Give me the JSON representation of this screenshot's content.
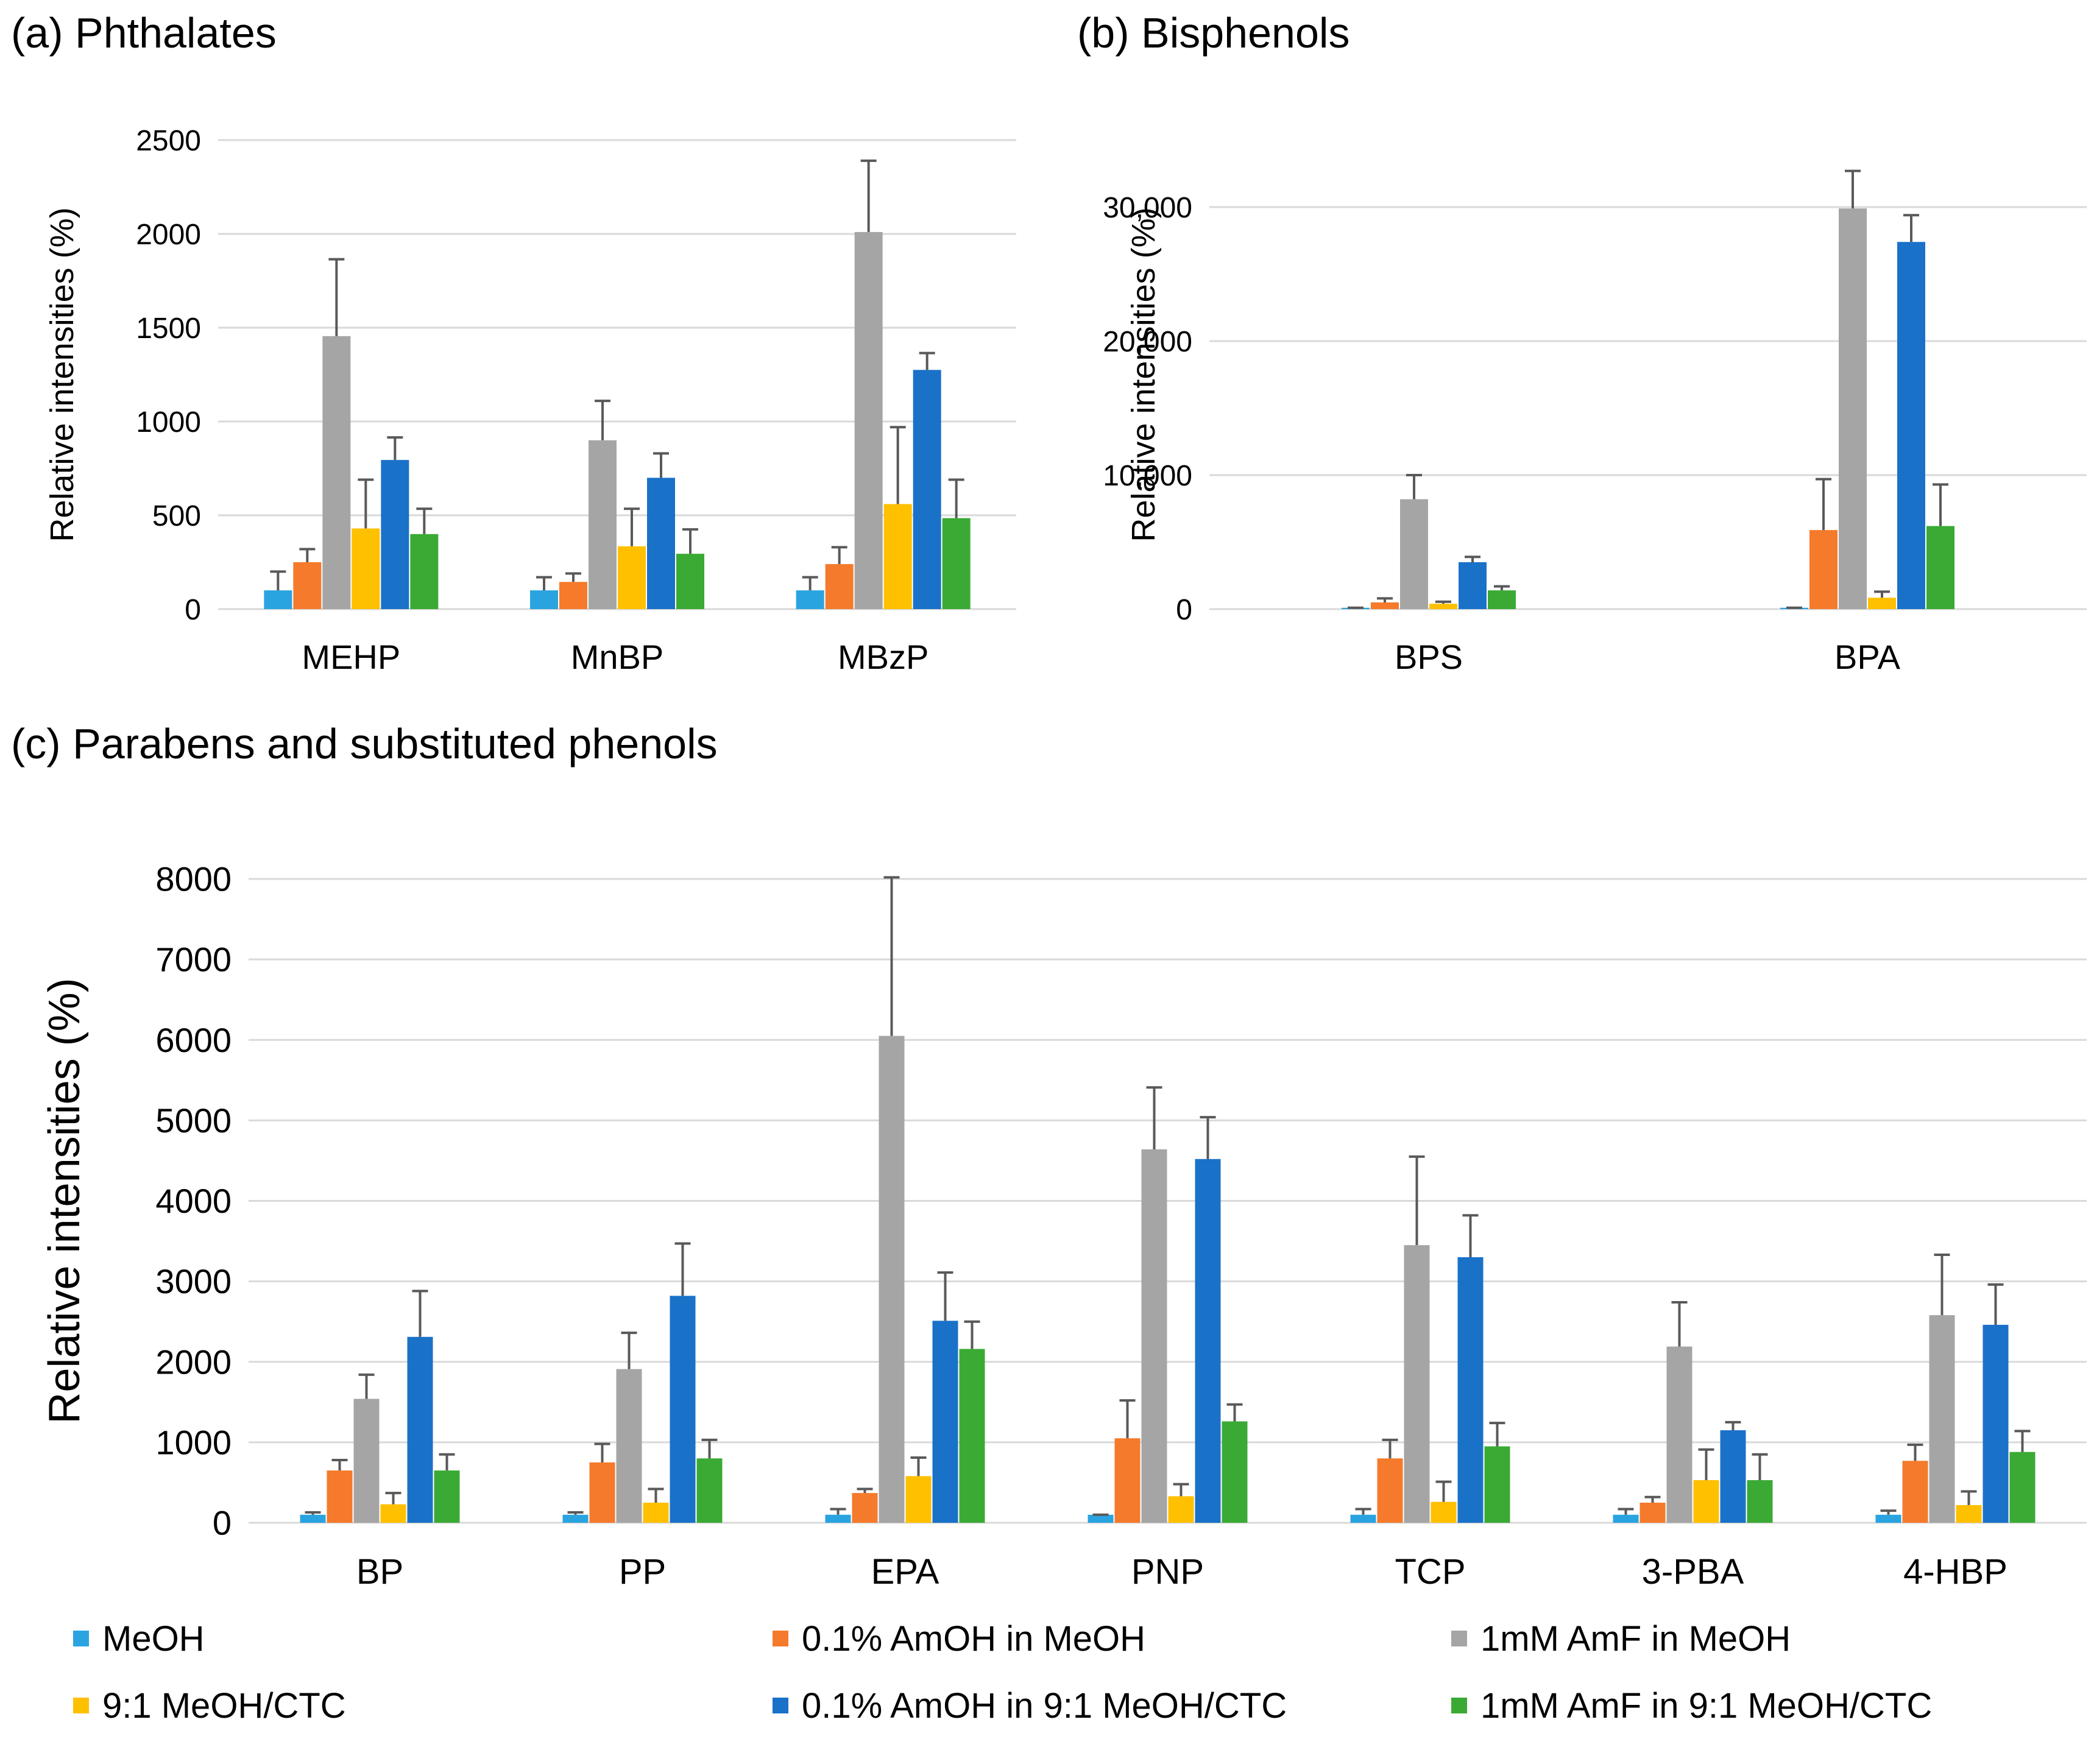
{
  "colors": {
    "MeOH": "#29A4E0",
    "0.1% AmOH in MeOH": "#F57A2B",
    "1mM AmF in MeOH": "#A5A5A5",
    "9:1 MeOH/CTC": "#FFC000",
    "0.1% AmOH in 9:1 MeOH/CTC": "#1A71C8",
    "1mM AmF in 9:1 MeOH/CTC": "#3AAA35"
  },
  "legend": [
    "MeOH",
    "0.1% AmOH in MeOH",
    "1mM AmF in MeOH",
    "9:1 MeOH/CTC",
    "0.1% AmOH in 9:1 MeOH/CTC",
    "1mM AmF in 9:1 MeOH/CTC"
  ],
  "chart_data": [
    {
      "type": "bar",
      "title": "(a) Phthalates",
      "ylabel": "Relative intensities (%)",
      "ylim": [
        0,
        2500
      ],
      "yticks": [
        0,
        500,
        1000,
        1500,
        2000,
        2500
      ],
      "ytick_labels": [
        "0",
        "500",
        "1000",
        "1500",
        "2000",
        "2500"
      ],
      "categories": [
        "MEHP",
        "MnBP",
        "MBzP"
      ],
      "series": [
        {
          "name": "MeOH",
          "values": [
            100,
            100,
            100
          ],
          "errors": [
            100,
            70,
            70
          ]
        },
        {
          "name": "0.1% AmOH in MeOH",
          "values": [
            250,
            145,
            240
          ],
          "errors": [
            70,
            45,
            90
          ]
        },
        {
          "name": "1mM AmF in MeOH",
          "values": [
            1455,
            900,
            2010
          ],
          "errors": [
            410,
            210,
            380
          ]
        },
        {
          "name": "9:1 MeOH/CTC",
          "values": [
            430,
            335,
            560
          ],
          "errors": [
            260,
            200,
            410
          ]
        },
        {
          "name": "0.1% AmOH in 9:1 MeOH/CTC",
          "values": [
            795,
            700,
            1275
          ],
          "errors": [
            120,
            130,
            90
          ]
        },
        {
          "name": "1mM AmF in 9:1 MeOH/CTC",
          "values": [
            400,
            295,
            485
          ],
          "errors": [
            135,
            130,
            205
          ]
        }
      ]
    },
    {
      "type": "bar",
      "title": "(b) Bisphenols",
      "ylabel": "Relative intensities (%)",
      "ylim": [
        0,
        35000
      ],
      "yticks": [
        0,
        10000,
        20000,
        30000
      ],
      "ytick_labels": [
        "0",
        "10,000",
        "20,000",
        "30,000"
      ],
      "categories": [
        "BPS",
        "BPA"
      ],
      "series": [
        {
          "name": "MeOH",
          "values": [
            100,
            100
          ],
          "errors": [
            0,
            0
          ]
        },
        {
          "name": "0.1% AmOH in MeOH",
          "values": [
            500,
            5900
          ],
          "errors": [
            300,
            3800
          ]
        },
        {
          "name": "1mM AmF in MeOH",
          "values": [
            8200,
            29900
          ],
          "errors": [
            1800,
            2800
          ]
        },
        {
          "name": "9:1 MeOH/CTC",
          "values": [
            400,
            850
          ],
          "errors": [
            150,
            450
          ]
        },
        {
          "name": "0.1% AmOH in 9:1 MeOH/CTC",
          "values": [
            3500,
            27400
          ],
          "errors": [
            400,
            2000
          ]
        },
        {
          "name": "1mM AmF in 9:1 MeOH/CTC",
          "values": [
            1400,
            6200
          ],
          "errors": [
            300,
            3100
          ]
        }
      ]
    },
    {
      "type": "bar",
      "title": "(c) Parabens and substituted phenols",
      "ylabel": "Relative intensities (%)",
      "ylim": [
        0,
        8000
      ],
      "yticks": [
        0,
        1000,
        2000,
        3000,
        4000,
        5000,
        6000,
        7000,
        8000
      ],
      "ytick_labels": [
        "0",
        "1000",
        "2000",
        "3000",
        "4000",
        "5000",
        "6000",
        "7000",
        "8000"
      ],
      "categories": [
        "BP",
        "PP",
        "EPA",
        "PNP",
        "TCP",
        "3-PBA",
        "4-HBP"
      ],
      "series": [
        {
          "name": "MeOH",
          "values": [
            100,
            100,
            100,
            100,
            100,
            100,
            100
          ],
          "errors": [
            30,
            30,
            70,
            0,
            70,
            70,
            50
          ]
        },
        {
          "name": "0.1% AmOH in MeOH",
          "values": [
            650,
            750,
            370,
            1050,
            800,
            250,
            770
          ],
          "errors": [
            130,
            230,
            50,
            470,
            230,
            70,
            200
          ]
        },
        {
          "name": "1mM AmF in MeOH",
          "values": [
            1540,
            1910,
            6050,
            4640,
            3450,
            2190,
            2580
          ],
          "errors": [
            300,
            450,
            1970,
            770,
            1100,
            550,
            750
          ]
        },
        {
          "name": "9:1 MeOH/CTC",
          "values": [
            230,
            250,
            580,
            330,
            260,
            530,
            220
          ],
          "errors": [
            140,
            170,
            230,
            150,
            250,
            380,
            170
          ]
        },
        {
          "name": "0.1% AmOH in 9:1 MeOH/CTC",
          "values": [
            2310,
            2820,
            2510,
            4520,
            3300,
            1150,
            2460
          ],
          "errors": [
            570,
            650,
            600,
            520,
            520,
            100,
            500
          ]
        },
        {
          "name": "1mM AmF in 9:1 MeOH/CTC",
          "values": [
            650,
            800,
            2160,
            1260,
            950,
            530,
            880
          ],
          "errors": [
            200,
            230,
            340,
            210,
            290,
            320,
            260
          ]
        }
      ]
    }
  ]
}
